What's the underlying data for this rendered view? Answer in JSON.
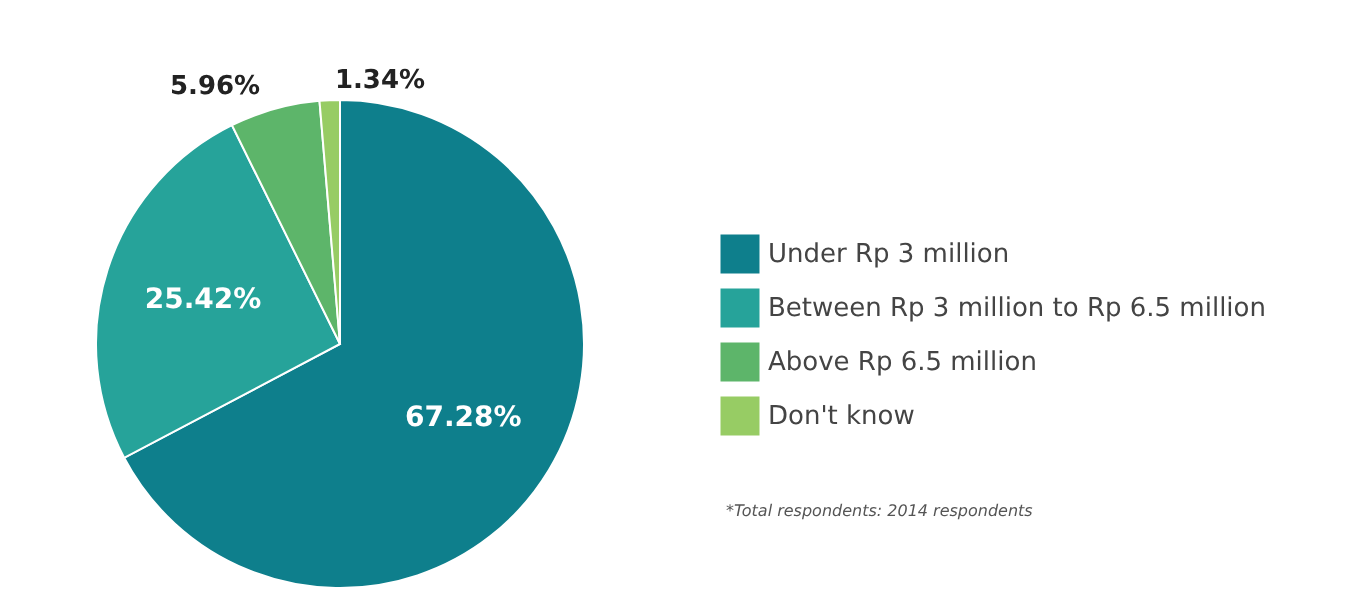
{
  "chart_data": {
    "type": "pie",
    "categories": [
      "Under Rp 3 million",
      "Between Rp 3 million to Rp 6.5 million",
      "Above Rp 6.5 million",
      "Don't know"
    ],
    "values": [
      67.28,
      25.42,
      5.96,
      1.34
    ],
    "value_labels": [
      "67.28%",
      "25.42%",
      "5.96%",
      "1.34%"
    ],
    "colors": [
      "#0e7f8c",
      "#26a39a",
      "#5db56a",
      "#97cc64"
    ],
    "legend": "right",
    "annotations": [
      "*Total respondents: 2014 respondents"
    ]
  }
}
